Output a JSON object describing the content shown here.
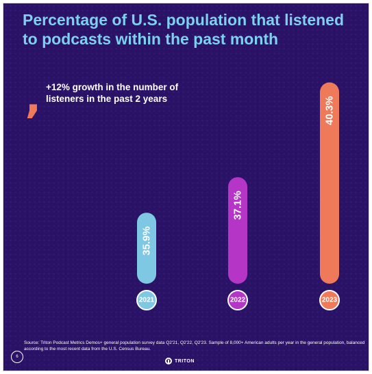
{
  "title": "Percentage of U.S. population that listened to podcasts within the past month",
  "callout": "+12% growth in the number of listeners in the past 2 years",
  "quote_mark": "‚",
  "source": "Source: Triton Podcast Metrics Demos+ general population survey data Q2'21, Q2'22, Q2'23.  Sample of 8,000+ American adults per year in the general population, balanced according to the most recent data from the U.S. Census Bureau.",
  "page_number": "6",
  "brand": "TRITON",
  "colors": {
    "background": "#2a1366",
    "title": "#7fd0ee",
    "accent": "#ef7a5a",
    "year_label_bg": "#ffffff"
  },
  "chart_data": {
    "type": "bar",
    "orientation": "vertical",
    "categories": [
      "2021",
      "2022",
      "2023"
    ],
    "values": [
      35.9,
      37.1,
      40.3
    ],
    "value_labels": [
      "35.9%",
      "37.1%",
      "40.3%"
    ],
    "series_colors": [
      "#7ec8e3",
      "#b535c7",
      "#ef7a5a"
    ],
    "unit": "%",
    "axes_visible": false,
    "grid": false
  }
}
